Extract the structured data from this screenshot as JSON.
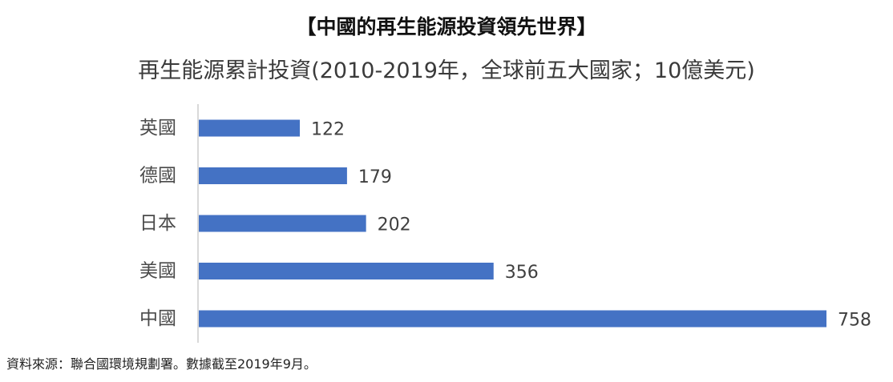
{
  "chart_data": {
    "type": "bar",
    "orientation": "horizontal",
    "title": "【中國的再生能源投資領先世界】",
    "subtitle": "再生能源累計投資(2010-2019年，全球前五大國家；10億美元)",
    "categories": [
      "英國",
      "德國",
      "日本",
      "美國",
      "中國"
    ],
    "values": [
      122,
      179,
      202,
      356,
      758
    ],
    "bar_color": "#4472C4",
    "axis_line_color": "#D9D9D9",
    "xlim": [
      0,
      758
    ],
    "grid": false,
    "legend": "none",
    "source": "資料來源：聯合國環境規劃署。數據截至2019年9月。"
  }
}
